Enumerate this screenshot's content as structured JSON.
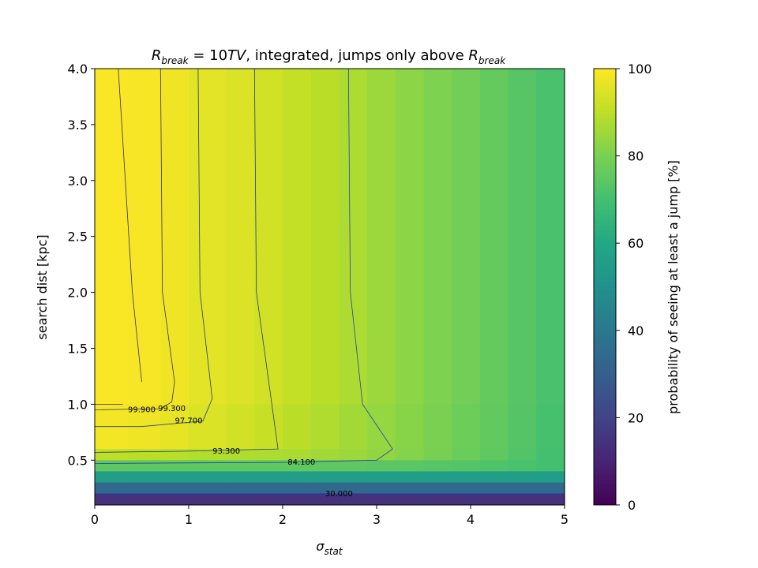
{
  "chart_data": {
    "type": "heatmap",
    "title": {
      "main": "R",
      "sub": "break",
      "equals": " = 10",
      "italic_unit": "TV",
      "middle": ", integrated, jumps only above ",
      "tail_main": "R",
      "tail_sub": "break"
    },
    "xlabel": {
      "main": "σ",
      "sub": "stat"
    },
    "ylabel": "search dist [kpc]",
    "colorbar_label": "probability of seeing at least a jump [%]",
    "colormap": "viridis",
    "vmin": 0,
    "vmax": 100,
    "xlim": [
      0,
      5
    ],
    "ylim": [
      0.1,
      4.0
    ],
    "xticks": [
      "0",
      "1",
      "2",
      "3",
      "4",
      "5"
    ],
    "yticks": [
      "0.5",
      "1.0",
      "1.5",
      "2.0",
      "2.5",
      "3.0",
      "3.5",
      "4.0"
    ],
    "colorbar_ticks": [
      "0",
      "20",
      "40",
      "60",
      "80",
      "100"
    ],
    "x_edges": [
      0,
      0.35,
      0.7,
      1.0,
      1.4,
      1.7,
      2.0,
      2.3,
      2.6,
      2.9,
      3.2,
      3.5,
      3.8,
      4.1,
      4.4,
      4.7,
      5.0
    ],
    "row_bands": [
      {
        "y_range": [
          1.0,
          4.0
        ],
        "values": [
          99.3,
          99.0,
          98.0,
          96.0,
          94.5,
          93.0,
          91.0,
          89.5,
          87.5,
          85.0,
          82.5,
          80.5,
          78.5,
          76.0,
          73.5,
          71.0
        ]
      },
      {
        "y_range": [
          0.6,
          1.0
        ],
        "values": [
          98.5,
          97.8,
          96.5,
          94.5,
          93.0,
          91.5,
          89.5,
          88.0,
          86.0,
          84.0,
          82.0,
          80.0,
          77.5,
          75.5,
          73.0,
          70.5
        ]
      },
      {
        "y_range": [
          0.5,
          0.6
        ],
        "values": [
          90.0,
          89.5,
          89.0,
          88.5,
          88.0,
          87.5,
          87.0,
          86.0,
          85.0,
          83.5,
          81.5,
          79.5,
          77.0,
          75.0,
          72.5,
          70.0
        ]
      },
      {
        "y_range": [
          0.4,
          0.5
        ],
        "values": [
          75.0,
          75.0,
          75.0,
          75.0,
          75.0,
          75.0,
          75.0,
          75.0,
          75.0,
          74.5,
          74.0,
          73.5,
          73.0,
          72.0,
          71.0,
          70.0
        ]
      },
      {
        "y_range": [
          0.3,
          0.4
        ],
        "values": [
          55,
          55,
          55,
          55,
          55,
          55,
          55,
          55,
          55,
          55,
          55,
          55,
          55,
          55,
          55,
          55
        ]
      },
      {
        "y_range": [
          0.2,
          0.3
        ],
        "values": [
          34,
          34,
          34,
          34,
          34,
          34,
          34,
          34,
          34,
          34,
          34,
          34,
          34,
          34,
          34,
          34
        ]
      },
      {
        "y_range": [
          0.1,
          0.2
        ],
        "values": [
          14,
          14,
          14,
          14,
          14,
          14,
          14,
          14,
          14,
          14,
          14,
          14,
          14,
          14,
          14,
          14
        ]
      }
    ],
    "contours": [
      {
        "level": "99.900",
        "label_at": [
          0.5,
          0.95
        ],
        "points": [
          [
            0.25,
            4.0
          ],
          [
            0.4,
            2.0
          ],
          [
            0.5,
            1.2
          ]
        ],
        "points2": [
          [
            0.0,
            1.0
          ],
          [
            0.3,
            1.0
          ]
        ]
      },
      {
        "level": "99.300",
        "label_at": [
          0.82,
          0.96
        ],
        "points": [
          [
            0.7,
            4.0
          ],
          [
            0.72,
            2.0
          ],
          [
            0.85,
            1.2
          ],
          [
            0.82,
            1.02
          ],
          [
            0.7,
            0.96
          ],
          [
            0.0,
            0.95
          ]
        ]
      },
      {
        "level": "97.700",
        "label_at": [
          1.0,
          0.85
        ],
        "points": [
          [
            1.1,
            4.0
          ],
          [
            1.12,
            2.0
          ],
          [
            1.25,
            1.05
          ],
          [
            1.15,
            0.85
          ],
          [
            0.5,
            0.8
          ],
          [
            0.0,
            0.8
          ]
        ]
      },
      {
        "level": "93.300",
        "label_at": [
          1.4,
          0.58
        ],
        "points": [
          [
            1.7,
            4.0
          ],
          [
            1.72,
            2.0
          ],
          [
            1.95,
            0.6
          ],
          [
            1.0,
            0.58
          ],
          [
            0.0,
            0.57
          ]
        ]
      },
      {
        "level": "84.100",
        "label_at": [
          2.2,
          0.48
        ],
        "points": [
          [
            2.7,
            4.0
          ],
          [
            2.72,
            2.0
          ],
          [
            2.85,
            1.0
          ],
          [
            3.17,
            0.6
          ],
          [
            3.0,
            0.5
          ],
          [
            2.0,
            0.48
          ],
          [
            0.0,
            0.47
          ]
        ]
      },
      {
        "level": "30.000",
        "label_at": [
          2.6,
          0.2
        ],
        "points": [
          [
            0.0,
            0.2
          ],
          [
            5.0,
            0.2
          ]
        ]
      }
    ]
  }
}
